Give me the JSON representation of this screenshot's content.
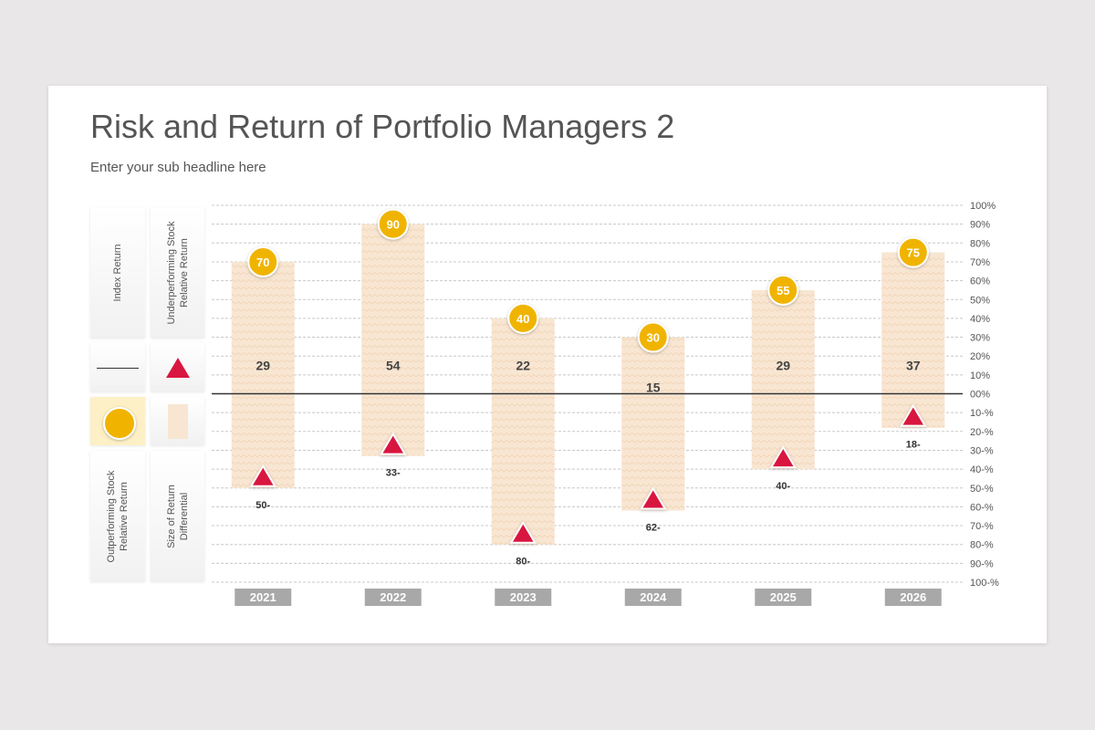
{
  "slide": {
    "title": "Risk and Return of Portfolio Managers 2",
    "subtitle": "Enter your sub headline here"
  },
  "legend": {
    "index_return": "Index Return",
    "underperforming": "Underperforming Stock\nRelative Return",
    "outperforming": "Outperforming Stock\nRelative Return",
    "size_diff": "Size of Return\nDifferential"
  },
  "colors": {
    "accent_gold": "#f0b400",
    "accent_red": "#d8163f",
    "bar_fill": "#f8e6d2",
    "year_tab": "#a8a8a8"
  },
  "chart_data": {
    "type": "bar",
    "categories": [
      "2021",
      "2022",
      "2023",
      "2024",
      "2025",
      "2026"
    ],
    "series": [
      {
        "values": [
          70,
          90,
          40,
          30,
          55,
          75
        ]
      },
      {
        "values": [
          -50,
          -33,
          -80,
          -62,
          -40,
          -18
        ]
      },
      {
        "values": [
          29,
          54,
          22,
          15,
          29,
          37
        ]
      }
    ],
    "outperform_labels": [
      "70",
      "90",
      "40",
      "30",
      "55",
      "75"
    ],
    "underperform_labels": [
      "50-",
      "33-",
      "80-",
      "62-",
      "40-",
      "18-"
    ],
    "differential_labels": [
      "29",
      "54",
      "22",
      "15",
      "29",
      "37"
    ],
    "y_ticks": [
      "100%",
      "90%",
      "80%",
      "70%",
      "60%",
      "50%",
      "40%",
      "30%",
      "20%",
      "10%",
      "00%",
      "10-%",
      "20-%",
      "30-%",
      "40-%",
      "50-%",
      "60-%",
      "70-%",
      "80-%",
      "90-%",
      "100-%"
    ],
    "ylim": [
      -100,
      100
    ],
    "grid": true,
    "index_line": 0
  }
}
